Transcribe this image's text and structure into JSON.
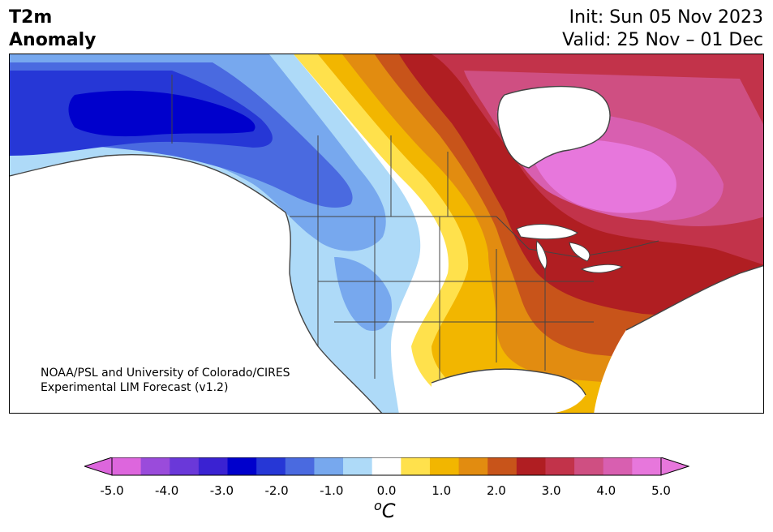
{
  "title": {
    "left_line1": "T2m",
    "left_line2": "Anomaly",
    "init": "Init: Sun 05 Nov 2023",
    "valid": "Valid: 25 Nov – 01 Dec"
  },
  "credit": {
    "line1": "NOAA/PSL and University of Colorado/CIRES",
    "line2": "Experimental LIM Forecast (v1.2)"
  },
  "colorbar": {
    "unit_sup": "o",
    "unit_letter": "C",
    "tick_labels": [
      "-5.0",
      "-4.0",
      "-3.0",
      "-2.0",
      "-1.0",
      "0.0",
      "1.0",
      "2.0",
      "3.0",
      "4.0",
      "5.0"
    ],
    "colors": [
      "#dd66dd",
      "#9a4bdb",
      "#6a38d9",
      "#3a22d2",
      "#0000cc",
      "#2637d6",
      "#4a6ae0",
      "#77a8ee",
      "#aedaf8",
      "#ffffff",
      "#ffe14c",
      "#f2b600",
      "#e28c10",
      "#c8541a",
      "#b01e22",
      "#c2334a",
      "#cf4f82",
      "#d85fb0",
      "#e777dc"
    ],
    "under_color": "#dd66dd",
    "over_color": "#e777dc"
  },
  "map": {
    "region": "North America",
    "land_color": "#ffffff",
    "border_color": "#444444"
  }
}
